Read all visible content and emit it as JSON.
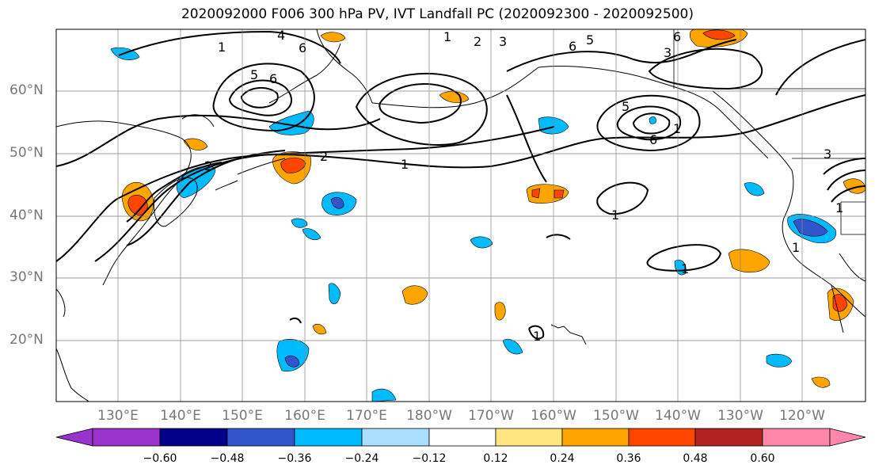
{
  "title": "2020092000 F006 300 hPa PV, IVT Landfall PC (2020092300 - 2020092500)",
  "latitude_labels": [
    "60°N",
    "50°N",
    "40°N",
    "30°N",
    "20°N"
  ],
  "longitude_labels": [
    "130°E",
    "140°E",
    "150°E",
    "160°E",
    "170°E",
    "180°W",
    "170°W",
    "160°W",
    "150°W",
    "140°W",
    "130°W",
    "120°W"
  ],
  "colorbar": {
    "ticks": [
      "−0.60",
      "−0.48",
      "−0.36",
      "−0.24",
      "−0.12",
      "0.12",
      "0.24",
      "0.36",
      "0.48",
      "0.60"
    ],
    "colors": [
      "#9933cc",
      "#000088",
      "#3355cc",
      "#00bbff",
      "#aaddff",
      "#ffffff",
      "#ffe680",
      "#ffa500",
      "#ff4500",
      "#b22222",
      "#ff88aa"
    ]
  },
  "contour_labels": [
    "1",
    "2",
    "3",
    "4",
    "5",
    "6",
    "1",
    "2",
    "1",
    "3",
    "6",
    "5",
    "6",
    "2",
    "1",
    "1",
    "1",
    "6",
    "3",
    "1",
    "1",
    "6",
    "5",
    "1"
  ]
}
